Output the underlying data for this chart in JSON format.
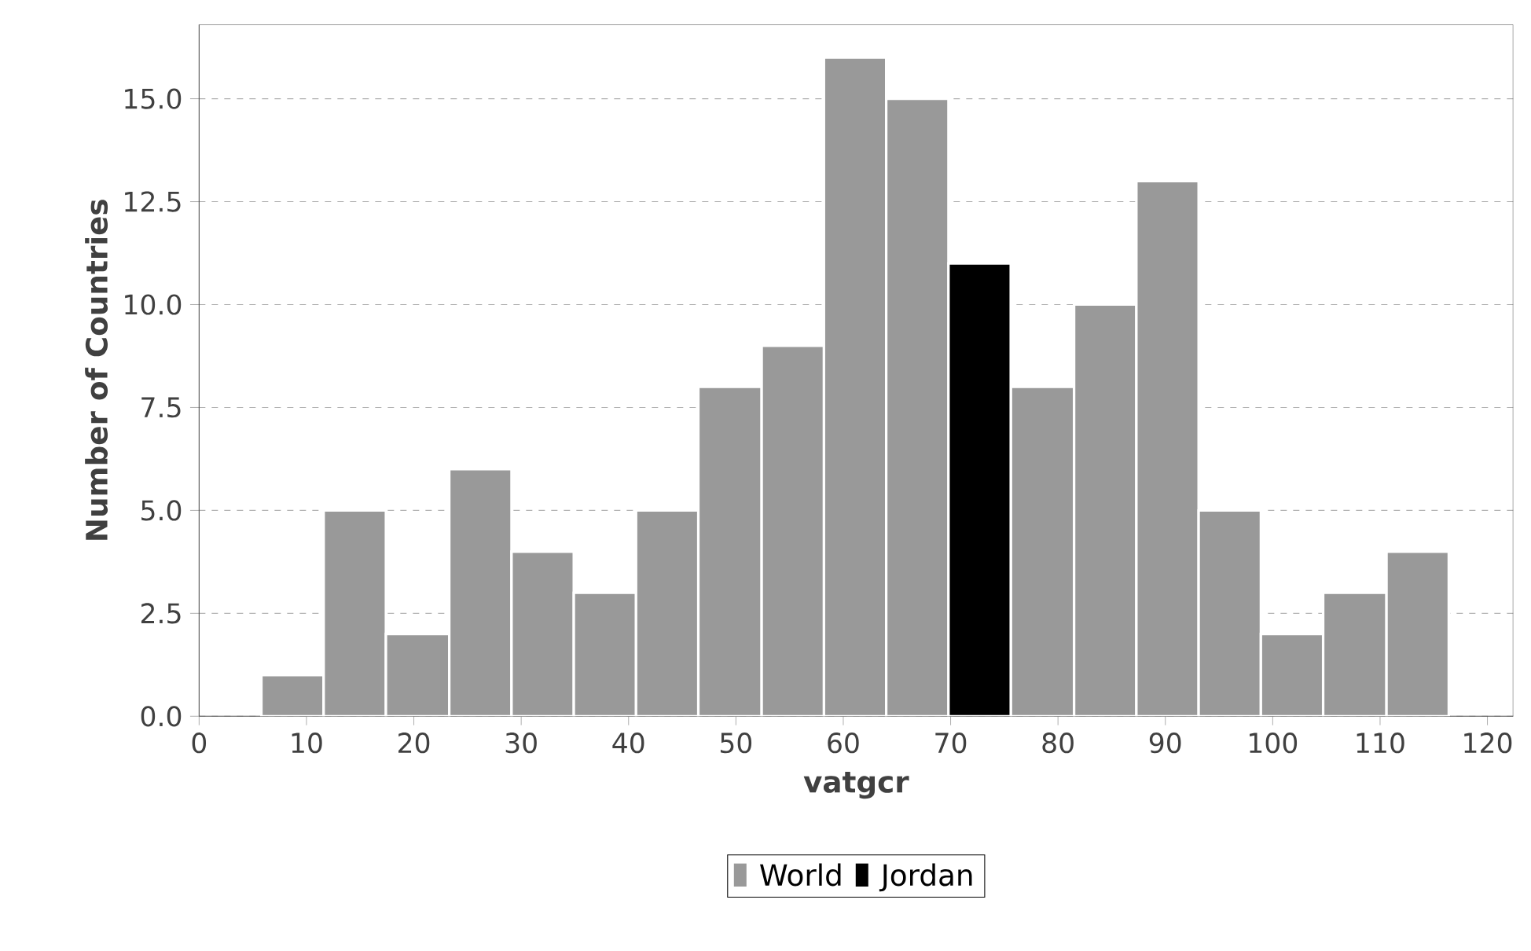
{
  "chart_data": {
    "type": "histogram",
    "xlabel": "vatgcr",
    "ylabel": "Number of Countries",
    "bins": [
      5.8,
      11.6,
      17.4,
      23.3,
      29.1,
      34.9,
      40.7,
      46.5,
      52.4,
      58.2,
      64.0,
      69.8,
      75.6,
      81.5,
      87.3,
      93.1,
      98.9,
      104.7,
      110.6,
      116.4
    ],
    "series": [
      {
        "name": "World",
        "color": "#999999",
        "values": [
          1,
          5,
          2,
          6,
          4,
          3,
          5,
          8,
          9,
          16,
          15,
          null,
          8,
          10,
          13,
          5,
          2,
          3,
          4
        ]
      },
      {
        "name": "Jordan",
        "color": "#000000",
        "values": [
          null,
          null,
          null,
          null,
          null,
          null,
          null,
          null,
          null,
          null,
          null,
          11,
          null,
          null,
          null,
          null,
          null,
          null,
          null
        ]
      }
    ],
    "xlim": [
      0,
      122.4
    ],
    "ylim": [
      0,
      16.8
    ],
    "xticks": [
      0,
      10,
      20,
      30,
      40,
      50,
      60,
      70,
      80,
      90,
      100,
      110,
      120
    ],
    "yticks": [
      {
        "value": 0,
        "label": "0.0"
      },
      {
        "value": 2.5,
        "label": "2.5"
      },
      {
        "value": 5,
        "label": "5.0"
      },
      {
        "value": 7.5,
        "label": "7.5"
      },
      {
        "value": 10,
        "label": "10.0"
      },
      {
        "value": 12.5,
        "label": "12.5"
      },
      {
        "value": 15,
        "label": "15.0"
      }
    ],
    "grid": "y",
    "legend": "bottom"
  }
}
